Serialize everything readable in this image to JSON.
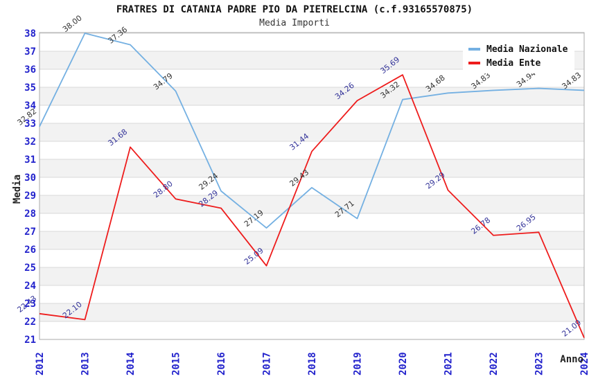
{
  "title": "FRATRES DI CATANIA PADRE PIO DA PIETRELCINA (c.f.93165570875)",
  "subtitle": "Media Importi",
  "legend": {
    "position": "top-right",
    "items": [
      {
        "label": "Media Nazionale",
        "color": "#74b0e2"
      },
      {
        "label": "Media Ente",
        "color": "#ee1c1c"
      }
    ]
  },
  "axes": {
    "ylabel": "Media",
    "xlabel": "Anno",
    "tick_color": "#2222cc",
    "yticks": [
      21,
      22,
      23,
      24,
      25,
      26,
      27,
      28,
      29,
      30,
      31,
      32,
      33,
      34,
      35,
      36,
      37,
      38
    ],
    "xticks": [
      "2012",
      "2013",
      "2014",
      "2015",
      "2016",
      "2017",
      "2018",
      "2019",
      "2020",
      "2021",
      "2022",
      "2023",
      "2024"
    ]
  },
  "chart_data": {
    "type": "line",
    "title": "FRATRES DI CATANIA PADRE PIO DA PIETRELCINA (c.f.93165570875)",
    "subtitle": "Media Importi",
    "xlabel": "Anno",
    "ylabel": "Media",
    "ylim": [
      21,
      38
    ],
    "ytick_step": 1,
    "grid": "horizontal gridlines with alternating shaded bands",
    "legend_position": "top-right",
    "categories": [
      2012,
      2013,
      2014,
      2015,
      2016,
      2017,
      2018,
      2019,
      2020,
      2021,
      2022,
      2023,
      2024
    ],
    "series": [
      {
        "name": "Media Nazionale",
        "color": "#74b0e2",
        "label_color": "#333333",
        "values": [
          32.82,
          38.0,
          37.36,
          34.79,
          29.24,
          27.19,
          29.43,
          27.71,
          34.32,
          34.68,
          34.83,
          34.94,
          34.83
        ]
      },
      {
        "name": "Media Ente",
        "color": "#ee1c1c",
        "label_color": "#333399",
        "values": [
          22.43,
          22.1,
          31.68,
          28.8,
          28.29,
          25.09,
          31.44,
          34.26,
          35.69,
          29.29,
          26.78,
          26.95,
          21.09
        ]
      }
    ],
    "style": {
      "band_color": "#f2f2f2",
      "gridline_color": "#d8d8d8",
      "plot_border_color": "#aaaaaa",
      "background": "#ffffff"
    }
  }
}
